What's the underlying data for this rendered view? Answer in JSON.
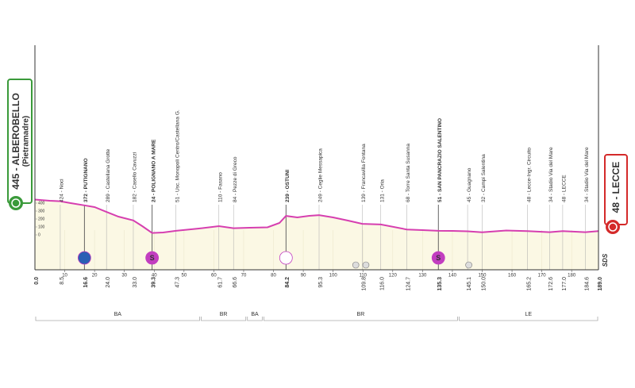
{
  "chart_data": {
    "type": "profile",
    "start": "445 - ALBEROBELLO",
    "start_sub": "(Pietramadre)",
    "finish": "48 - LECCE",
    "logo": "SDS",
    "x": [
      0,
      5,
      8.5,
      12,
      16.6,
      20,
      24,
      28,
      33,
      36,
      39.3,
      43,
      47.3,
      55,
      61.7,
      66.6,
      72,
      78,
      82,
      84.2,
      88,
      92,
      95.3,
      100,
      105,
      109.8,
      116,
      124.7,
      130,
      135.3,
      140,
      145.1,
      150,
      158,
      165.2,
      172.6,
      177,
      184.6,
      189
    ],
    "values": [
      445,
      430,
      424,
      400,
      372,
      350,
      289,
      230,
      182,
      110,
      24,
      30,
      51,
      80,
      110,
      84,
      90,
      95,
      150,
      239,
      220,
      240,
      249,
      220,
      180,
      139,
      131,
      68,
      60,
      51,
      50,
      45,
      32,
      55,
      48,
      34,
      48,
      34,
      48
    ],
    "color": "#d63fb0",
    "fill": "#fbf8e4",
    "xlim": [
      0,
      189
    ],
    "ylim": [
      -440,
      460
    ],
    "yticks": [
      0,
      100,
      200,
      300,
      400
    ],
    "xticks": [
      10,
      20,
      30,
      40,
      50,
      60,
      70,
      80,
      90,
      100,
      110,
      120,
      130,
      140,
      150,
      160,
      170,
      180
    ],
    "start_km": {
      "value": 0,
      "label": "0.0"
    },
    "finish_km": {
      "value": 189,
      "label": "189.0"
    },
    "places": [
      {
        "km": 8.5,
        "label": "424 - Noci",
        "major": false
      },
      {
        "km": 16.6,
        "label": "372 - PUTIGNANO",
        "major": true
      },
      {
        "km": {
          "value": 24,
          "label": "24.0"
        },
        "label": "289 - Castellana Grotte",
        "major": false
      },
      {
        "km": {
          "value": 33,
          "label": "33.0"
        },
        "label": "182 - Casello Cavuzzi",
        "major": false
      },
      {
        "km": 39.3,
        "label": "24 - POLIGNANO A MARE",
        "major": true
      },
      {
        "km": 47.3,
        "label": "51 - Usc. Monopoli Centro/Castellana G.",
        "major": false
      },
      {
        "km": 61.7,
        "label": "110 - Fasano",
        "major": false
      },
      {
        "km": 66.6,
        "label": "84 - Pezze di Greco",
        "major": false
      },
      {
        "km": 84.2,
        "label": "239 - OSTUNI",
        "major": true
      },
      {
        "km": 95.3,
        "label": "249 - Ceglie Messapica",
        "major": false
      },
      {
        "km": 109.8,
        "label": "139 - Francavilla Fontana",
        "major": false
      },
      {
        "km": {
          "value": 116,
          "label": "116.0"
        },
        "label": "131 - Oria",
        "major": false
      },
      {
        "km": 124.7,
        "label": "68 - Torre Santa Susanna",
        "major": false
      },
      {
        "km": 135.3,
        "label": "51 - SAN PANCRAZIO SALENTINO",
        "major": true
      },
      {
        "km": 145.1,
        "label": "45 - Guagnano",
        "major": false
      },
      {
        "km": {
          "value": 150,
          "label": "150.0"
        },
        "label": "32 - Campi Salentina",
        "major": false
      },
      {
        "km": 165.2,
        "label": "48 - Lecce-Ingr. Circuito",
        "major": false
      },
      {
        "km": 172.6,
        "label": "34 - Stadio Via del Mare",
        "major": false
      },
      {
        "km": {
          "value": 177,
          "label": "177.0"
        },
        "label": "48 - LECCE",
        "major": false
      },
      {
        "km": 184.6,
        "label": "34 - Stadio Via del Mare",
        "major": false
      }
    ],
    "markers": [
      {
        "x": 16.6,
        "color": "#2b5fb4",
        "kind": "sprint"
      },
      {
        "x": 39.3,
        "color": "#c23ec0",
        "kind": "sprint",
        "label": "S"
      },
      {
        "x": 84.2,
        "color": "#ffffff",
        "kind": "sprint"
      },
      {
        "x": 135.3,
        "color": "#c23ec0",
        "kind": "sprint",
        "label": "S"
      },
      {
        "x": 107.6,
        "color": "#dddddd",
        "kind": "small"
      },
      {
        "x": 111,
        "color": "#dddddd",
        "kind": "small"
      },
      {
        "x": 145.5,
        "color": "#dddddd",
        "kind": "small"
      }
    ],
    "provinces": [
      {
        "label": "BA",
        "from": 0,
        "to": 55.5
      },
      {
        "label": "BR",
        "from": 55.5,
        "to": 71
      },
      {
        "label": "BA",
        "from": 71,
        "to": 76.5
      },
      {
        "label": "BR",
        "from": 76.5,
        "to": 142
      },
      {
        "label": "LE",
        "from": 142,
        "to": 189
      }
    ]
  }
}
